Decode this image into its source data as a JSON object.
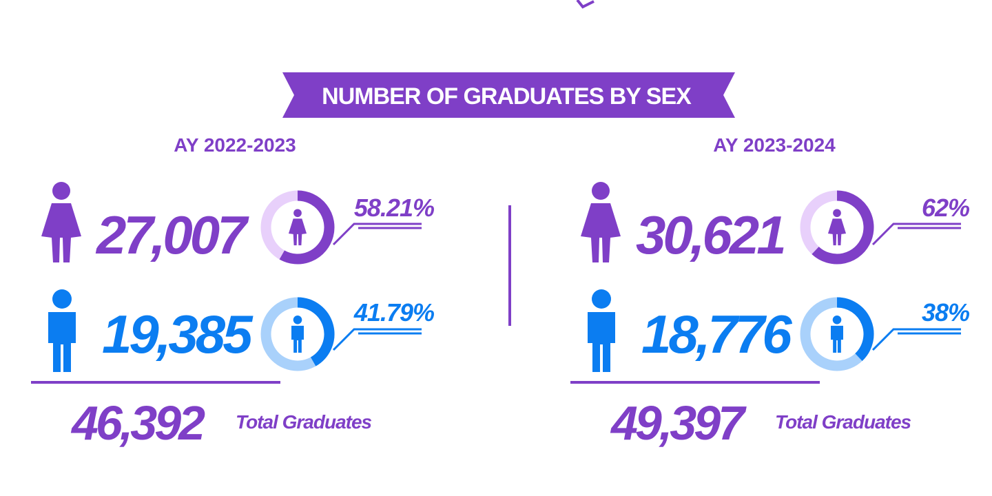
{
  "header": {
    "title": "NUMBER OF GRADUATES BY SEX"
  },
  "panels": [
    {
      "period": "AY 2022-2023",
      "female": {
        "count": "27,007",
        "percent": 58.21,
        "percent_label": "58.21%"
      },
      "male": {
        "count": "19,385",
        "percent": 41.79,
        "percent_label": "41.79%"
      },
      "total": "46,392",
      "total_label": "Total Graduates"
    },
    {
      "period": "AY 2023-2024",
      "female": {
        "count": "30,621",
        "percent": 62,
        "percent_label": "62%"
      },
      "male": {
        "count": "18,776",
        "percent": 38,
        "percent_label": "38%"
      },
      "total": "49,397",
      "total_label": "Total Graduates"
    }
  ]
}
